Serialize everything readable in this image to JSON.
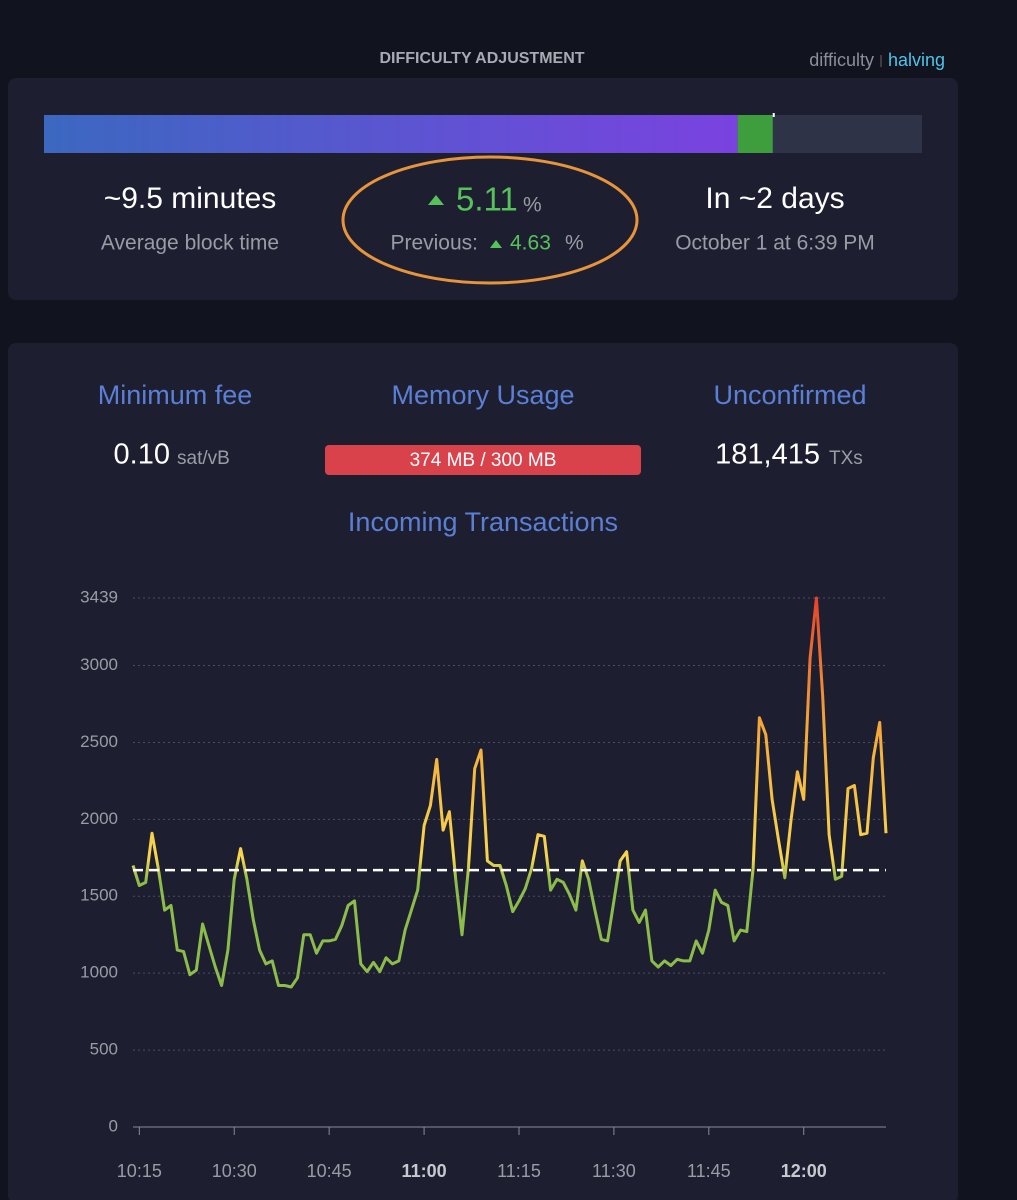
{
  "header": {
    "title": "DIFFICULTY ADJUSTMENT",
    "tabs": [
      "difficulty",
      "halving"
    ]
  },
  "difficulty": {
    "progress": {
      "mined": 79,
      "ahead": 4
    },
    "block_time": {
      "value": "~9.5 minutes",
      "label": "Average block time"
    },
    "change": {
      "value": 5.11,
      "unit": "%",
      "previous_label": "Previous:",
      "previous": 4.63
    },
    "eta": {
      "value": "In ~2 days",
      "label": "October 1 at 6:39 PM"
    }
  },
  "mempool": {
    "min_fee": {
      "label": "Minimum fee",
      "value": "0.10",
      "unit": "sat/vB"
    },
    "memory": {
      "label": "Memory Usage",
      "value": "374 MB / 300 MB"
    },
    "unconfirmed": {
      "label": "Unconfirmed",
      "value": "181,415",
      "unit": "TXs"
    }
  },
  "chart_data": {
    "type": "line",
    "title": "Incoming Transactions",
    "x": [
      "10:14",
      "10:15",
      "10:16",
      "10:17",
      "10:18",
      "10:19",
      "10:20",
      "10:21",
      "10:22",
      "10:23",
      "10:24",
      "10:25",
      "10:26",
      "10:27",
      "10:28",
      "10:29",
      "10:30",
      "10:31",
      "10:32",
      "10:33",
      "10:34",
      "10:35",
      "10:36",
      "10:37",
      "10:38",
      "10:39",
      "10:40",
      "10:41",
      "10:42",
      "10:43",
      "10:44",
      "10:45",
      "10:46",
      "10:47",
      "10:48",
      "10:49",
      "10:50",
      "10:51",
      "10:52",
      "10:53",
      "10:54",
      "10:55",
      "10:56",
      "10:57",
      "10:58",
      "10:59",
      "11:00",
      "11:01",
      "11:02",
      "11:03",
      "11:04",
      "11:05",
      "11:06",
      "11:07",
      "11:08",
      "11:09",
      "11:10",
      "11:11",
      "11:12",
      "11:13",
      "11:14",
      "11:15",
      "11:16",
      "11:17",
      "11:18",
      "11:19",
      "11:20",
      "11:21",
      "11:22",
      "11:23",
      "11:24",
      "11:25",
      "11:26",
      "11:27",
      "11:28",
      "11:29",
      "11:30",
      "11:31",
      "11:32",
      "11:33",
      "11:34",
      "11:35",
      "11:36",
      "11:37",
      "11:38",
      "11:39",
      "11:40",
      "11:41",
      "11:42",
      "11:43",
      "11:44",
      "11:45",
      "11:46",
      "11:47",
      "11:48",
      "11:49",
      "11:50",
      "11:51",
      "11:52",
      "11:53",
      "11:54",
      "11:55",
      "11:56",
      "11:57",
      "11:58",
      "11:59",
      "12:00",
      "12:01",
      "12:02",
      "12:03",
      "12:04",
      "12:05",
      "12:06",
      "12:07",
      "12:08",
      "12:09",
      "12:10",
      "12:11",
      "12:12",
      "12:13"
    ],
    "values": [
      1700,
      1570,
      1590,
      1910,
      1680,
      1410,
      1440,
      1150,
      1140,
      990,
      1020,
      1320,
      1180,
      1040,
      920,
      1150,
      1610,
      1810,
      1610,
      1350,
      1150,
      1060,
      1080,
      920,
      920,
      910,
      970,
      1250,
      1250,
      1130,
      1210,
      1210,
      1220,
      1310,
      1440,
      1470,
      1060,
      1010,
      1070,
      1010,
      1100,
      1060,
      1080,
      1280,
      1410,
      1540,
      1960,
      2090,
      2390,
      1930,
      2050,
      1610,
      1250,
      1680,
      2330,
      2450,
      1730,
      1700,
      1700,
      1570,
      1400,
      1470,
      1550,
      1680,
      1900,
      1890,
      1540,
      1610,
      1590,
      1510,
      1410,
      1730,
      1610,
      1410,
      1220,
      1210,
      1470,
      1730,
      1790,
      1410,
      1330,
      1410,
      1080,
      1040,
      1080,
      1050,
      1090,
      1080,
      1080,
      1210,
      1130,
      1280,
      1540,
      1460,
      1440,
      1210,
      1280,
      1270,
      1680,
      2660,
      2550,
      2130,
      1870,
      1620,
      2000,
      2310,
      2130,
      3050,
      3439,
      2800,
      1900,
      1610,
      1630,
      2200,
      2220,
      1900,
      1910,
      2400,
      2630,
      1910
    ],
    "xlim": [
      "10:14",
      "12:13"
    ],
    "xticks": [
      "10:15",
      "10:30",
      "10:45",
      "11:00",
      "11:15",
      "11:30",
      "11:45",
      "12:00"
    ],
    "ylim": [
      0,
      3439
    ],
    "yticks": [
      0,
      500,
      1000,
      1500,
      2000,
      2500,
      3000,
      3439
    ],
    "grid": true,
    "reference_line": 1670,
    "color_stops": [
      {
        "value": 1600,
        "color": "#8cbd4a"
      },
      {
        "value": 1750,
        "color": "#f7d64e"
      },
      {
        "value": 2600,
        "color": "#f4a83a"
      },
      {
        "value": 3439,
        "color": "#e5432a"
      }
    ]
  }
}
